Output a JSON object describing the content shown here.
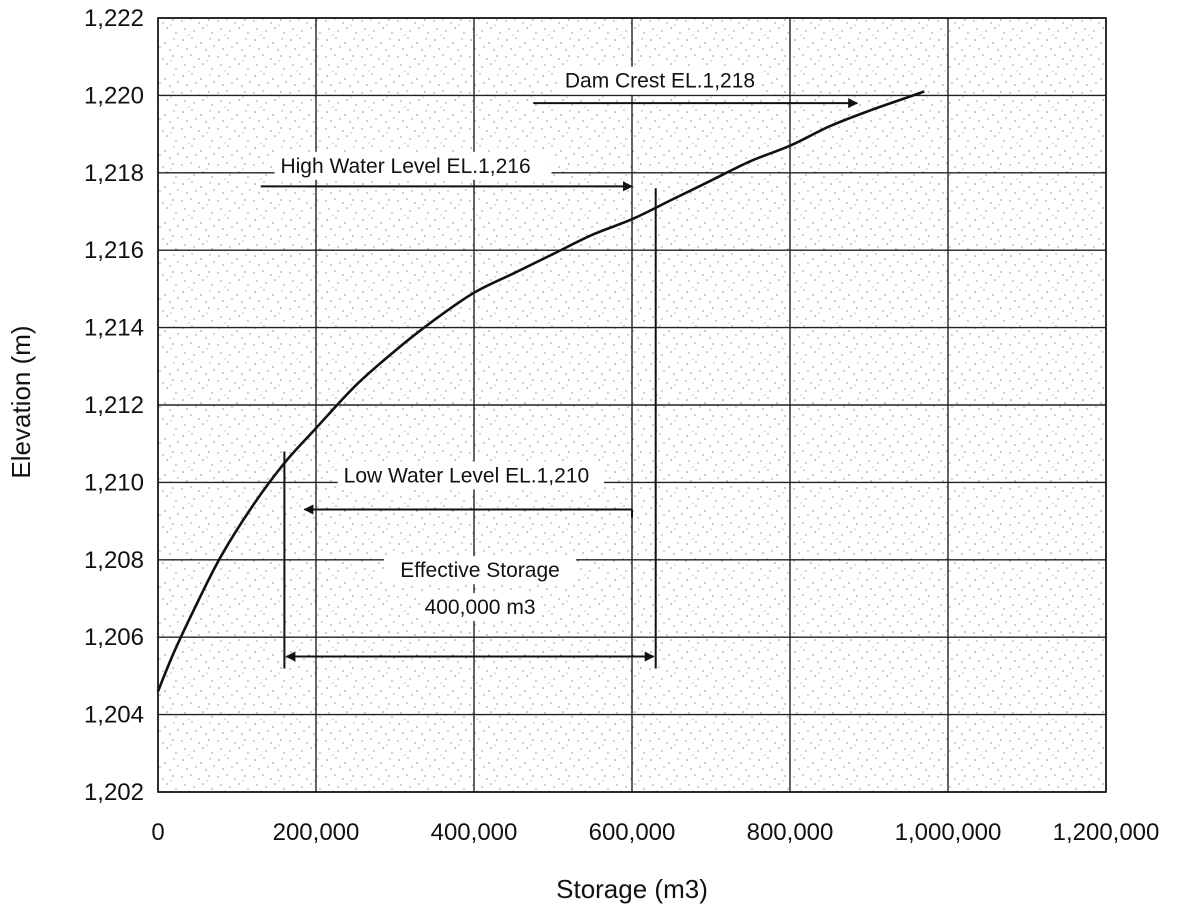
{
  "chart_data": {
    "type": "line",
    "title": "",
    "xlabel": "Storage (m3)",
    "ylabel": "Elevation (m)",
    "xlim": [
      0,
      1200000
    ],
    "ylim": [
      1202,
      1222
    ],
    "grid": true,
    "x_ticks": [
      {
        "value": 0,
        "label": "0"
      },
      {
        "value": 200000,
        "label": "200,000"
      },
      {
        "value": 400000,
        "label": "400,000"
      },
      {
        "value": 600000,
        "label": "600,000"
      },
      {
        "value": 800000,
        "label": "800,000"
      },
      {
        "value": 1000000,
        "label": "1,000,000"
      },
      {
        "value": 1200000,
        "label": "1,200,000"
      }
    ],
    "y_ticks": [
      {
        "value": 1202,
        "label": "1,202"
      },
      {
        "value": 1204,
        "label": "1,204"
      },
      {
        "value": 1206,
        "label": "1,206"
      },
      {
        "value": 1208,
        "label": "1,208"
      },
      {
        "value": 1210,
        "label": "1,210"
      },
      {
        "value": 1212,
        "label": "1,212"
      },
      {
        "value": 1214,
        "label": "1,214"
      },
      {
        "value": 1216,
        "label": "1,216"
      },
      {
        "value": 1218,
        "label": "1,218"
      },
      {
        "value": 1220,
        "label": "1,220"
      },
      {
        "value": 1222,
        "label": "1,222"
      }
    ],
    "series": [
      {
        "x": [
          0,
          20000,
          50000,
          80000,
          120000,
          160000,
          200000,
          250000,
          300000,
          350000,
          400000,
          450000,
          500000,
          550000,
          600000,
          650000,
          700000,
          750000,
          800000,
          850000,
          900000,
          970000
        ],
        "y": [
          1204.6,
          1205.6,
          1206.9,
          1208.1,
          1209.4,
          1210.5,
          1211.4,
          1212.5,
          1213.4,
          1214.2,
          1214.9,
          1215.4,
          1215.9,
          1216.4,
          1216.8,
          1217.3,
          1217.8,
          1218.3,
          1218.7,
          1219.2,
          1219.6,
          1220.1
        ]
      }
    ],
    "annotations": {
      "dam_crest": {
        "text": "Dam Crest EL.1,218"
      },
      "high_water": {
        "text": "High Water Level EL.1,216"
      },
      "low_water": {
        "text": "Low Water Level EL.1,210"
      },
      "effective_storage": {
        "line1": "Effective Storage",
        "line2": "400,000 m3"
      }
    },
    "reference_marks": {
      "low_storage": 160000,
      "high_storage": 630000,
      "low_arrow_y": 1210.8,
      "high_arrow_y": 1217.6,
      "storage_arrow_y": 1205.5,
      "dam_arrow_y": 1219.8,
      "dam_arrow_x": [
        475000,
        885000
      ],
      "high_arrow_x": [
        130000,
        600000
      ],
      "low_arrow_x_end": 600000
    },
    "colors": {
      "line": "#111111",
      "grid": "#222222",
      "background_speckle": "#9a9a9a"
    }
  }
}
